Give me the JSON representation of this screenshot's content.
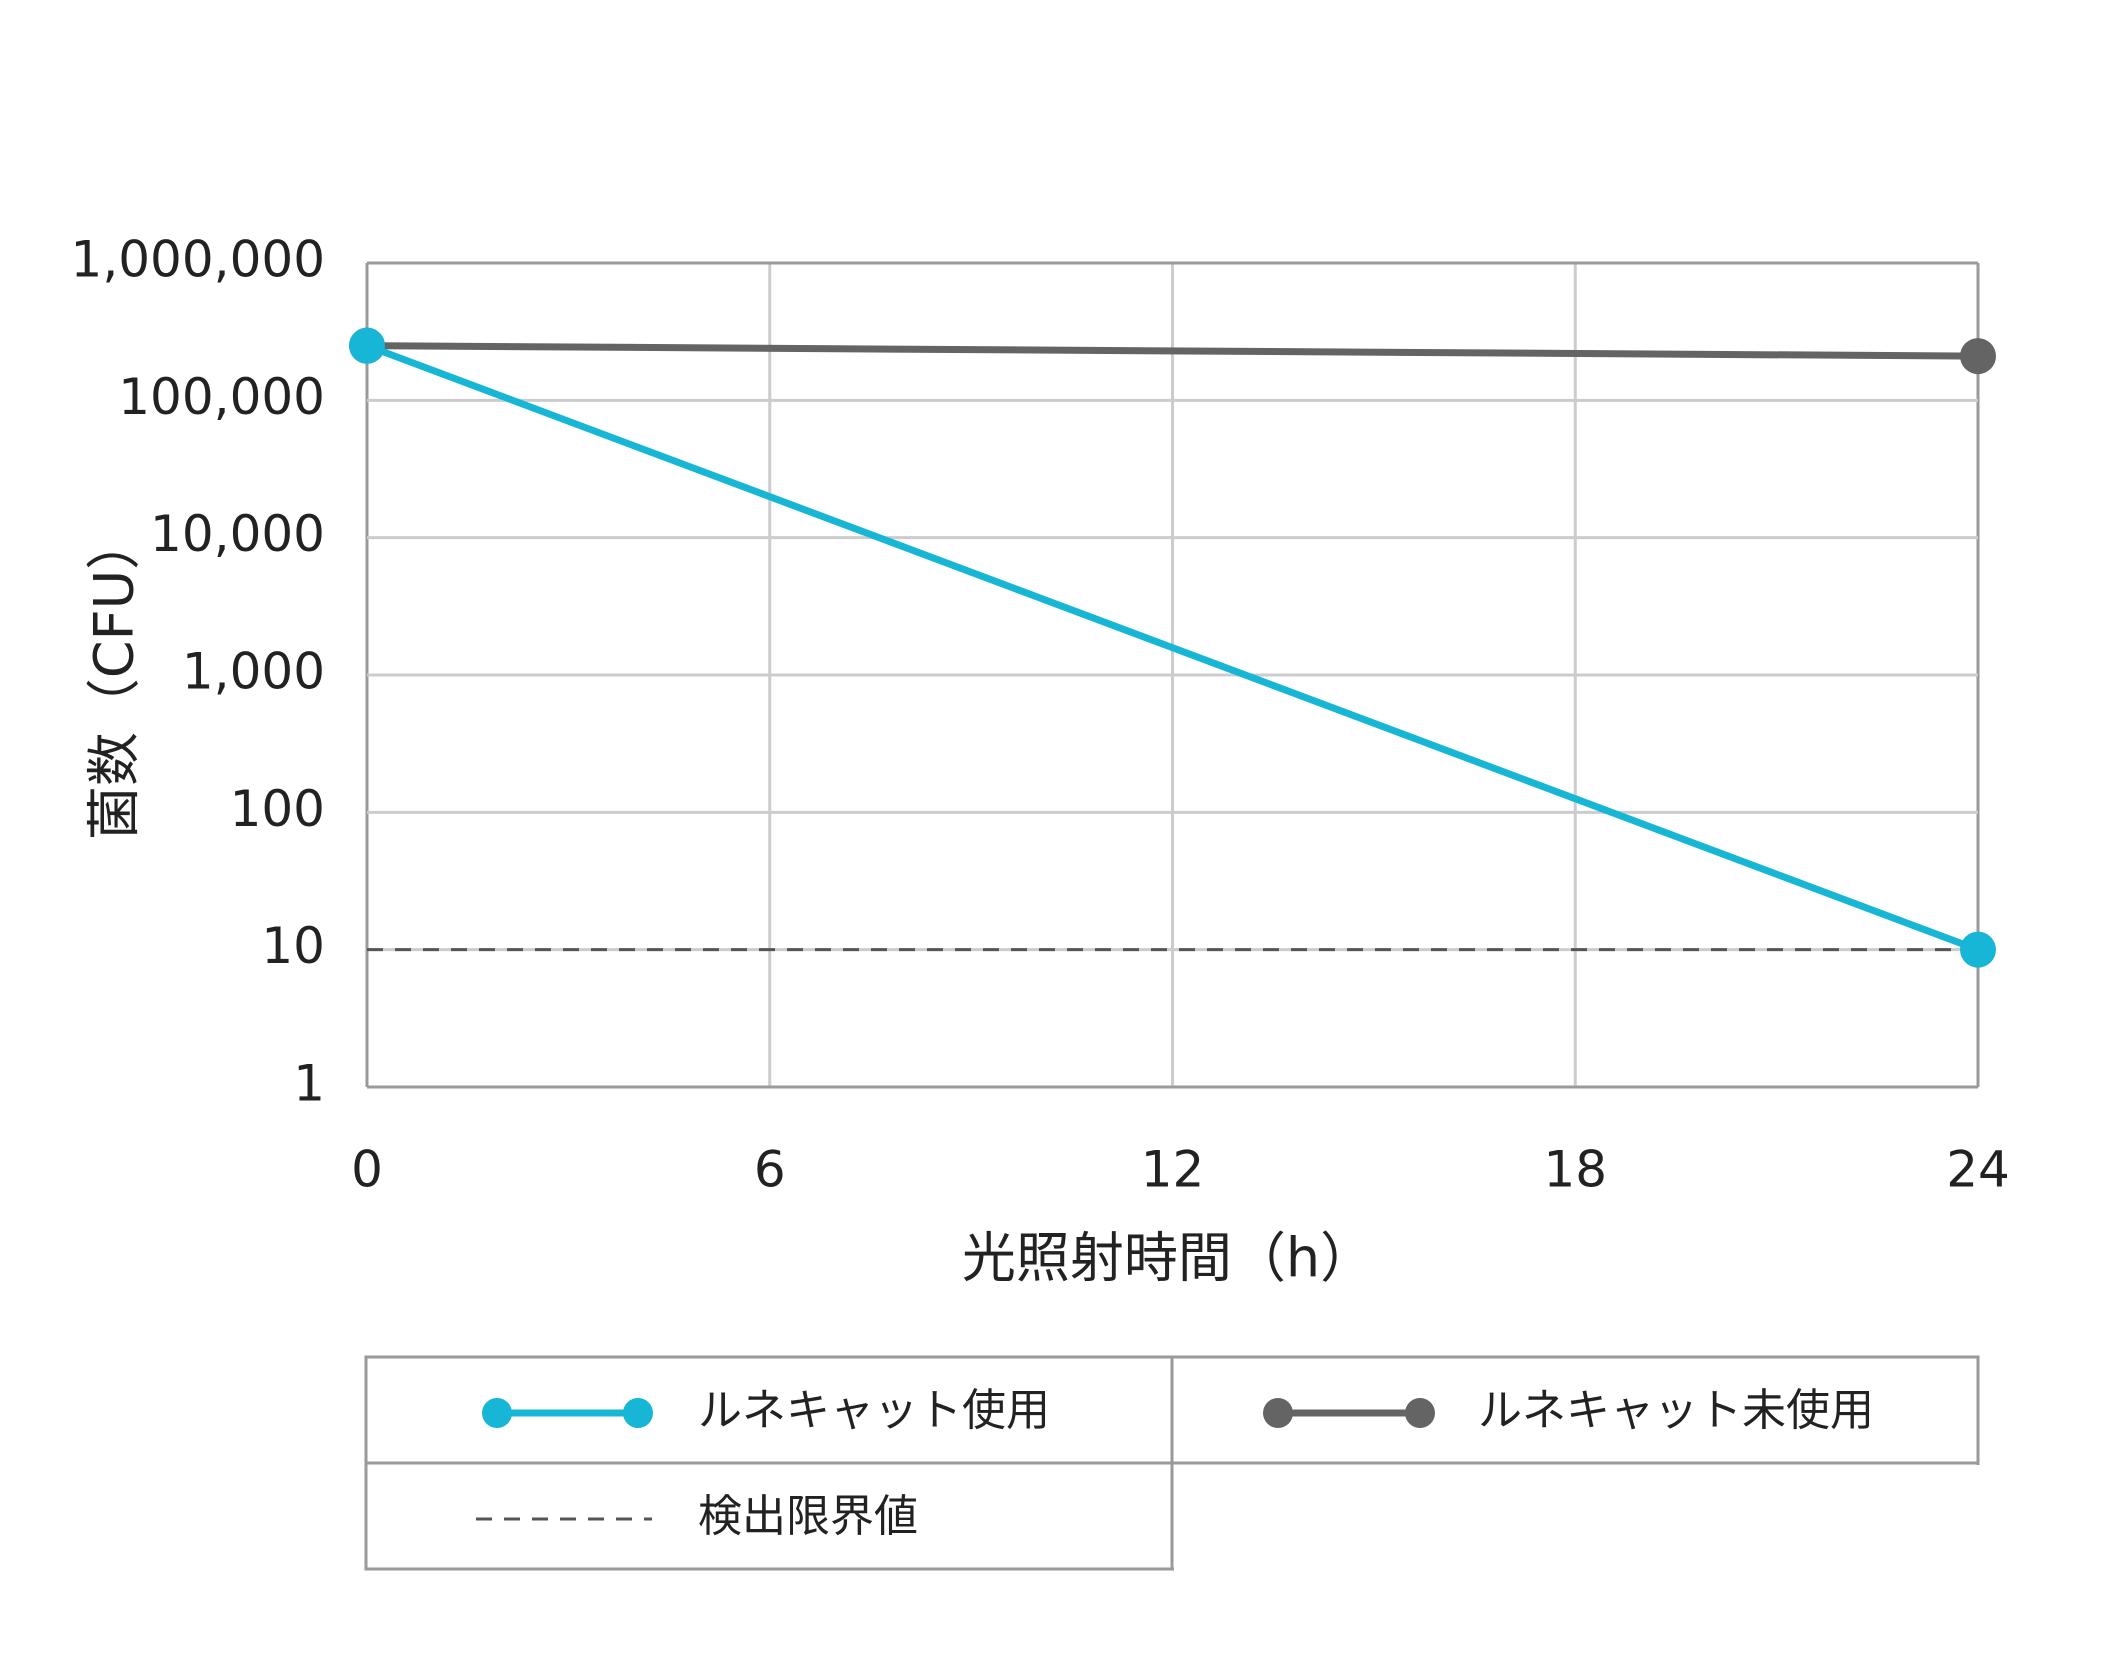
{
  "chart_data": {
    "type": "line",
    "xlabel": "光照射時間（h）",
    "ylabel": "菌数（CFU）",
    "x": [
      0,
      24
    ],
    "xlim": [
      0,
      24
    ],
    "xticks": [
      "0",
      "6",
      "12",
      "18",
      "24"
    ],
    "yscale": "log",
    "ylim": [
      1,
      1000000
    ],
    "yticks": [
      "1,000,000",
      "100,000",
      "10,000",
      "1,000",
      "100",
      "10",
      "1"
    ],
    "grid": true,
    "legend_position": "bottom",
    "series": [
      {
        "name": "ルネキャット使用",
        "values": [
          250000,
          10
        ],
        "color": "#17b6d6",
        "marker": "circle"
      },
      {
        "name": "ルネキャット未使用",
        "values": [
          250000,
          210000
        ],
        "color": "#646464",
        "marker": "circle"
      }
    ],
    "reference_lines": [
      {
        "name": "検出限界値",
        "y": 10,
        "style": "dashed",
        "color": "#555555"
      }
    ]
  }
}
